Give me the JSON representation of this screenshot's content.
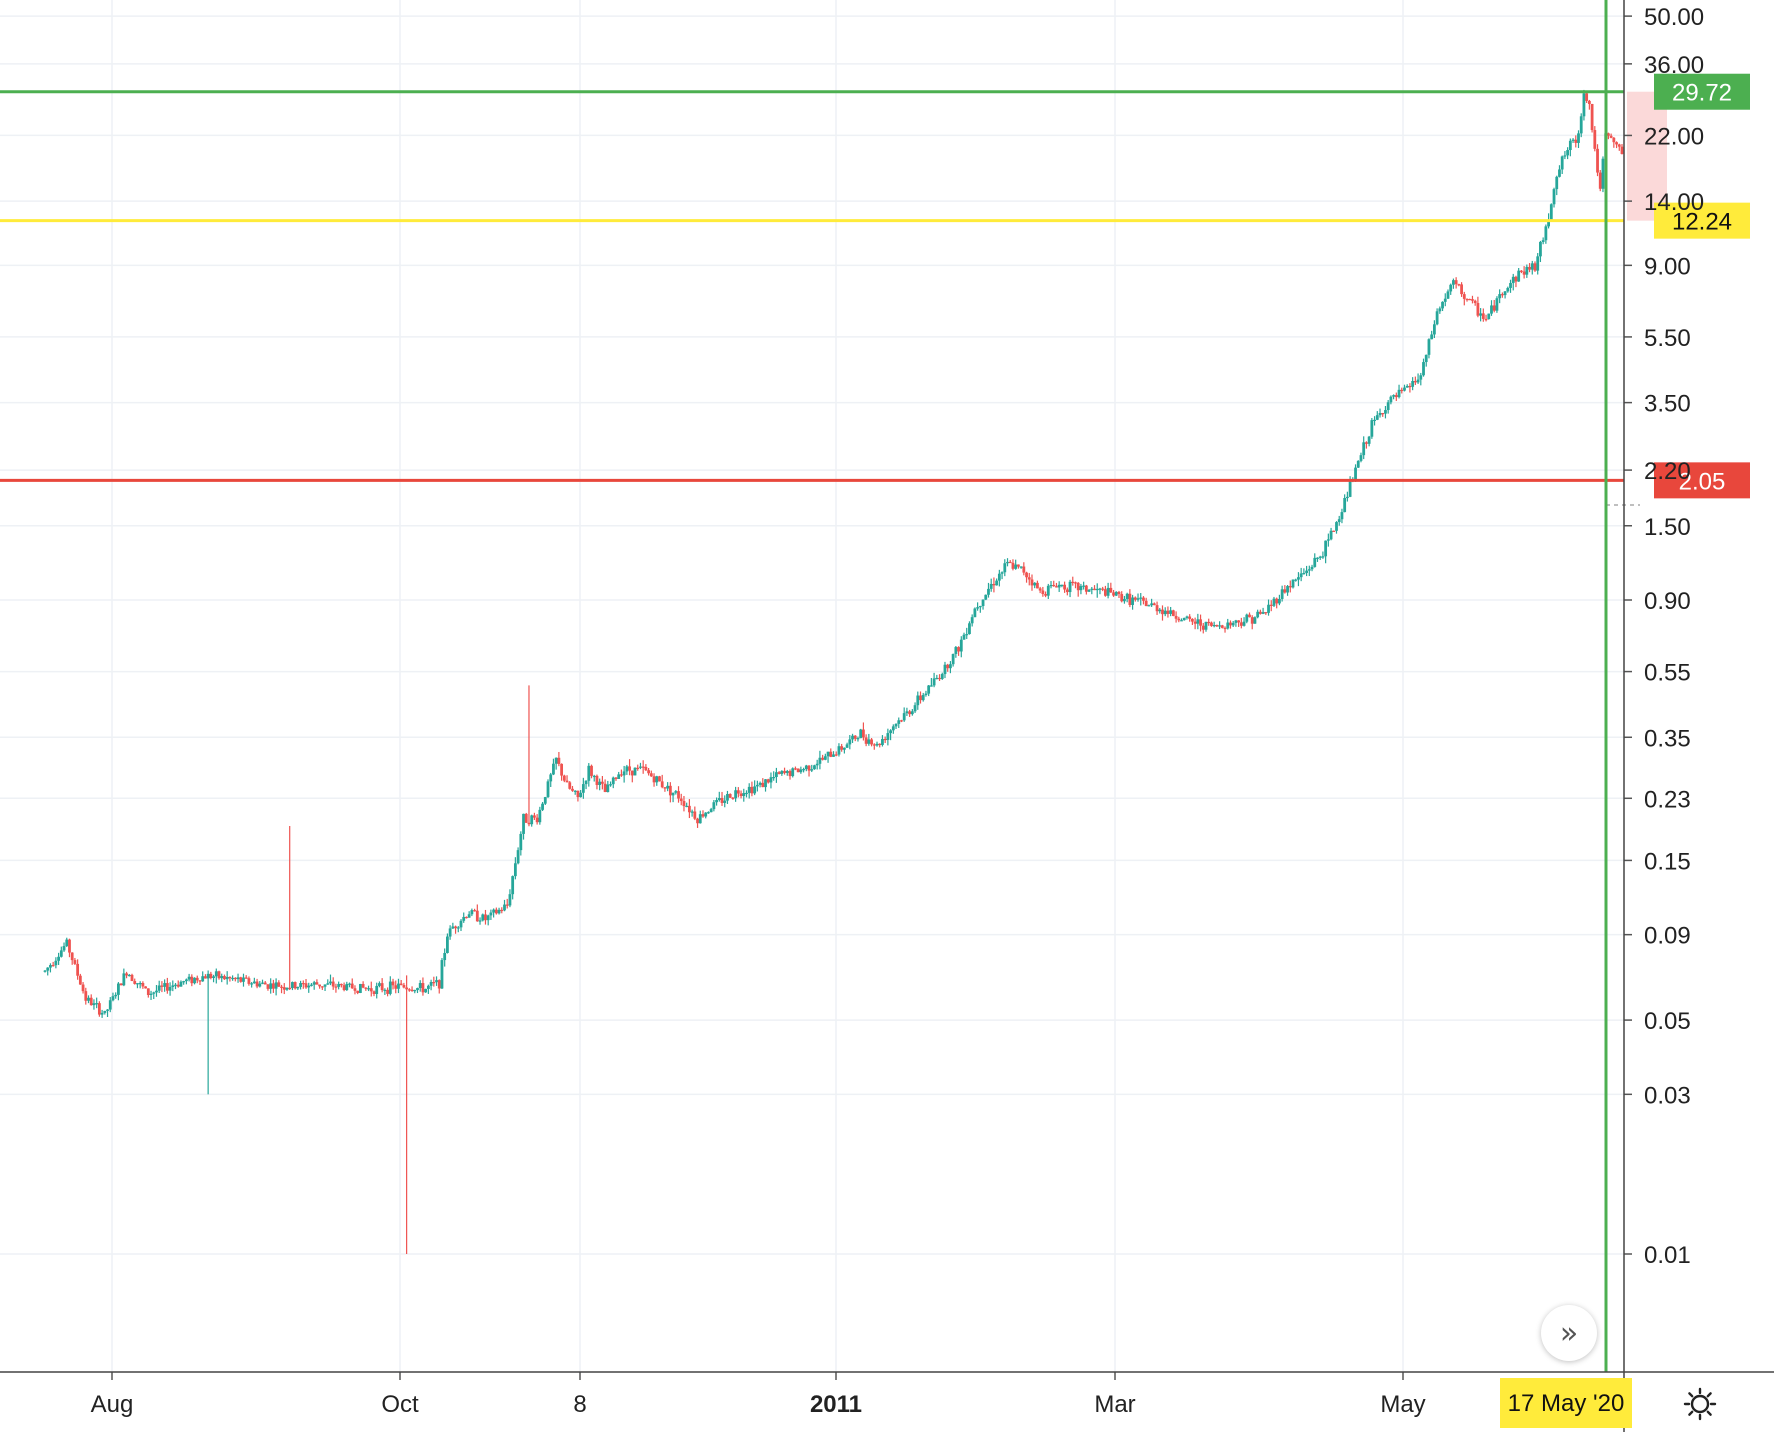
{
  "chart_data": {
    "type": "candlestick",
    "scale": "log",
    "grid": true,
    "ylim": [
      0.005,
      50.0
    ],
    "y_ticks": [
      "50.00",
      "36.00",
      "22.00",
      "14.00",
      "9.00",
      "5.50",
      "3.50",
      "2.20",
      "1.50",
      "0.90",
      "0.55",
      "0.35",
      "0.23",
      "0.15",
      "0.09",
      "0.05",
      "0.03",
      "0.01"
    ],
    "x_ticks": [
      "Aug",
      "Oct",
      "8",
      "2011",
      "Mar",
      "May"
    ],
    "price_lines": [
      {
        "value": 29.72,
        "label": "29.72",
        "color": "#4CAF50"
      },
      {
        "value": 12.24,
        "label": "12.24",
        "color": "#FFEB3B"
      },
      {
        "value": 2.05,
        "label": "2.05",
        "color": "#E8473C"
      }
    ],
    "crosshair_date": "17 May '20",
    "up_color": "#26A69A",
    "down_color": "#EF5350",
    "series_path": [
      [
        0,
        0.07
      ],
      [
        8,
        0.085
      ],
      [
        15,
        0.058
      ],
      [
        22,
        0.052
      ],
      [
        30,
        0.07
      ],
      [
        38,
        0.06
      ],
      [
        50,
        0.065
      ],
      [
        60,
        0.068
      ],
      [
        70,
        0.066
      ],
      [
        80,
        0.064
      ],
      [
        90,
        0.063
      ],
      [
        100,
        0.064
      ],
      [
        110,
        0.063
      ],
      [
        120,
        0.062
      ],
      [
        130,
        0.063
      ],
      [
        140,
        0.062
      ],
      [
        145,
        0.065
      ],
      [
        148,
        0.09
      ],
      [
        150,
        0.095
      ],
      [
        156,
        0.105
      ],
      [
        162,
        0.1
      ],
      [
        170,
        0.11
      ],
      [
        176,
        0.2
      ],
      [
        181,
        0.2
      ],
      [
        188,
        0.3
      ],
      [
        192,
        0.25
      ],
      [
        196,
        0.23
      ],
      [
        200,
        0.28
      ],
      [
        206,
        0.24
      ],
      [
        212,
        0.28
      ],
      [
        220,
        0.28
      ],
      [
        228,
        0.25
      ],
      [
        234,
        0.23
      ],
      [
        240,
        0.2
      ],
      [
        246,
        0.22
      ],
      [
        254,
        0.24
      ],
      [
        262,
        0.25
      ],
      [
        270,
        0.27
      ],
      [
        278,
        0.28
      ],
      [
        286,
        0.3
      ],
      [
        294,
        0.33
      ],
      [
        300,
        0.36
      ],
      [
        306,
        0.33
      ],
      [
        312,
        0.38
      ],
      [
        318,
        0.42
      ],
      [
        324,
        0.48
      ],
      [
        330,
        0.55
      ],
      [
        336,
        0.65
      ],
      [
        342,
        0.85
      ],
      [
        348,
        1.0
      ],
      [
        354,
        1.15
      ],
      [
        360,
        1.1
      ],
      [
        366,
        0.95
      ],
      [
        372,
        1.0
      ],
      [
        380,
        0.98
      ],
      [
        390,
        0.95
      ],
      [
        400,
        0.9
      ],
      [
        410,
        0.85
      ],
      [
        420,
        0.78
      ],
      [
        430,
        0.75
      ],
      [
        440,
        0.78
      ],
      [
        448,
        0.82
      ],
      [
        456,
        0.97
      ],
      [
        464,
        1.1
      ],
      [
        470,
        1.25
      ],
      [
        476,
        1.6
      ],
      [
        482,
        2.2
      ],
      [
        488,
        3.0
      ],
      [
        494,
        3.5
      ],
      [
        500,
        3.8
      ],
      [
        506,
        4.2
      ],
      [
        512,
        6.5
      ],
      [
        518,
        8.0
      ],
      [
        524,
        7.0
      ],
      [
        530,
        6.2
      ],
      [
        536,
        7.5
      ],
      [
        542,
        8.5
      ],
      [
        548,
        9.0
      ],
      [
        552,
        11.5
      ],
      [
        556,
        17.0
      ],
      [
        560,
        20.0
      ],
      [
        564,
        22.0
      ],
      [
        566,
        30.0
      ],
      [
        568,
        27.0
      ],
      [
        570,
        20.0
      ],
      [
        572,
        15.0
      ],
      [
        574,
        22.0
      ],
      [
        577,
        21.0
      ],
      [
        580,
        19.5
      ]
    ]
  },
  "ui": {
    "settings_icon": "sun-gear-icon",
    "scroll_icon": "double-chevron-right-icon"
  }
}
